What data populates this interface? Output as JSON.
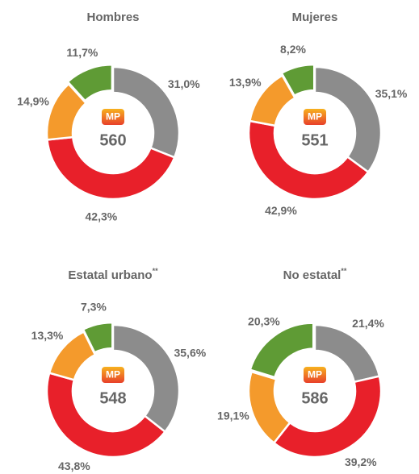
{
  "chart_data": [
    {
      "type": "donut",
      "title": "Hombres",
      "badge": "MP",
      "center_value": 560,
      "values": [
        31.0,
        42.3,
        14.9,
        11.7
      ],
      "value_labels": [
        "31,0%",
        "42,3%",
        "14,9%",
        "11,7%"
      ],
      "colors": [
        "#8c8c8c",
        "#e8202a",
        "#f49a2c",
        "#5f9b35"
      ],
      "explode": 3
    },
    {
      "type": "donut",
      "title": "Mujeres",
      "badge": "MP",
      "center_value": 551,
      "values": [
        35.1,
        42.9,
        13.9,
        8.2
      ],
      "value_labels": [
        "35,1%",
        "42,9%",
        "13,9%",
        "8,2%"
      ],
      "colors": [
        "#8c8c8c",
        "#e8202a",
        "#f49a2c",
        "#5f9b35"
      ],
      "explode": 3
    },
    {
      "type": "donut",
      "title": "Estatal urbano",
      "title_note": "**",
      "badge": "MP",
      "center_value": 548,
      "values": [
        35.6,
        43.8,
        13.3,
        7.3
      ],
      "value_labels": [
        "35,6%",
        "43,8%",
        "13,3%",
        "7,3%"
      ],
      "colors": [
        "#8c8c8c",
        "#e8202a",
        "#f49a2c",
        "#5f9b35"
      ],
      "explode": 3
    },
    {
      "type": "donut",
      "title": "No estatal",
      "title_note": "**",
      "badge": "MP",
      "center_value": 586,
      "values": [
        21.4,
        39.2,
        19.1,
        20.3
      ],
      "value_labels": [
        "21,4%",
        "39,2%",
        "19,1%",
        "20,3%"
      ],
      "colors": [
        "#8c8c8c",
        "#e8202a",
        "#f49a2c",
        "#5f9b35"
      ],
      "explode": 3
    }
  ]
}
